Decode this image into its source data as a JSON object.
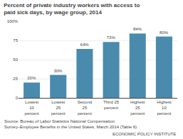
{
  "chart_data": {
    "type": "bar",
    "title": "Percent of private industry workers with access to paid sick days, by wage\ngroup, 2014",
    "categories": [
      "Lowest\n10\npercent",
      "Lowest\n25\npercent",
      "Second\n25\npercent",
      "Third 25\npercent",
      "Highest\n25\npercent",
      "Highest\n10\npercent"
    ],
    "values": [
      20,
      30,
      64,
      73,
      84,
      80
    ],
    "value_labels": [
      "20%",
      "30%",
      "64%",
      "73%",
      "84%",
      "80%"
    ],
    "data_labels": true,
    "color": "#4a8bad",
    "ylim": [
      0,
      100
    ],
    "yticks": [
      0,
      25,
      50,
      75,
      {
        "value": 100,
        "label": "100%"
      }
    ],
    "grid": true,
    "annotations": [
      "Source: Bureau of Labor Statistics National Compensation Survey–Employee Benefits in the United States, March 2014 (Table\n6).",
      "ECONOMIC POLICY INSTITUTE"
    ]
  }
}
